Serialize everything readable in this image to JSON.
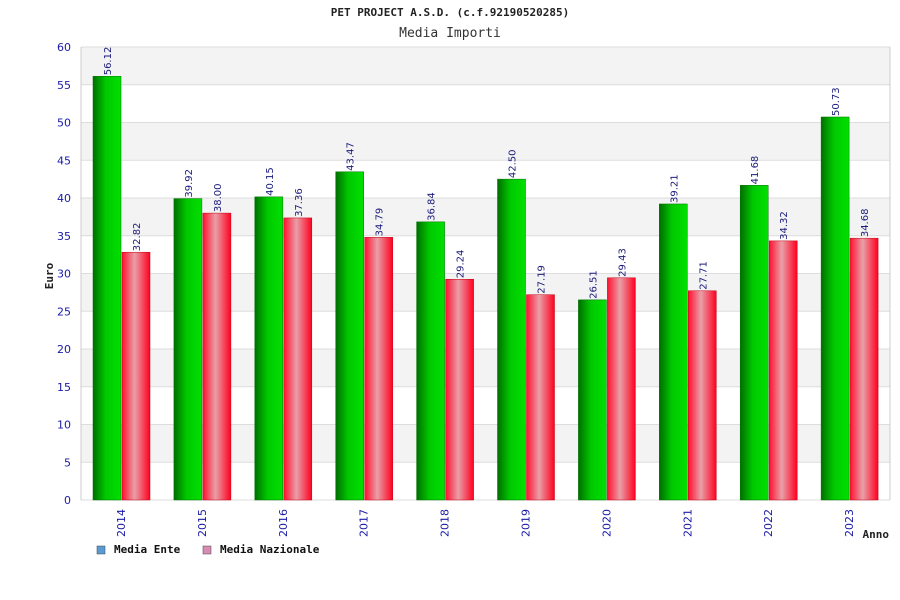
{
  "chart_data": {
    "type": "bar",
    "title": "PET PROJECT A.S.D. (c.f.92190520285)",
    "subtitle": "Media Importi",
    "xlabel": "Anno",
    "ylabel": "Euro",
    "categories": [
      "2014",
      "2015",
      "2016",
      "2017",
      "2018",
      "2019",
      "2020",
      "2021",
      "2022",
      "2023"
    ],
    "ylim": [
      0,
      60
    ],
    "yticks": [
      0,
      5,
      10,
      15,
      20,
      25,
      30,
      35,
      40,
      45,
      50,
      55,
      60
    ],
    "grid": true,
    "legend_position": "bottom-left",
    "series": [
      {
        "name": "Media Ente",
        "values": [
          56.12,
          39.92,
          40.15,
          43.47,
          36.84,
          42.5,
          26.51,
          39.21,
          41.68,
          50.73
        ],
        "labels": [
          "56.12",
          "39.92",
          "40.15",
          "43.47",
          "36.84",
          "42.50",
          "26.51",
          "39.21",
          "41.68",
          "50.73"
        ],
        "color": "#00b400",
        "legend_color": "#5b9bd5"
      },
      {
        "name": "Media Nazionale",
        "values": [
          32.82,
          38.0,
          37.36,
          34.79,
          29.24,
          27.19,
          29.43,
          27.71,
          34.32,
          34.68
        ],
        "labels": [
          "32.82",
          "38.00",
          "37.36",
          "34.79",
          "29.24",
          "27.19",
          "29.43",
          "27.71",
          "34.32",
          "34.68"
        ],
        "color": "#e8001a",
        "legend_color": "#d98cb3"
      }
    ]
  }
}
